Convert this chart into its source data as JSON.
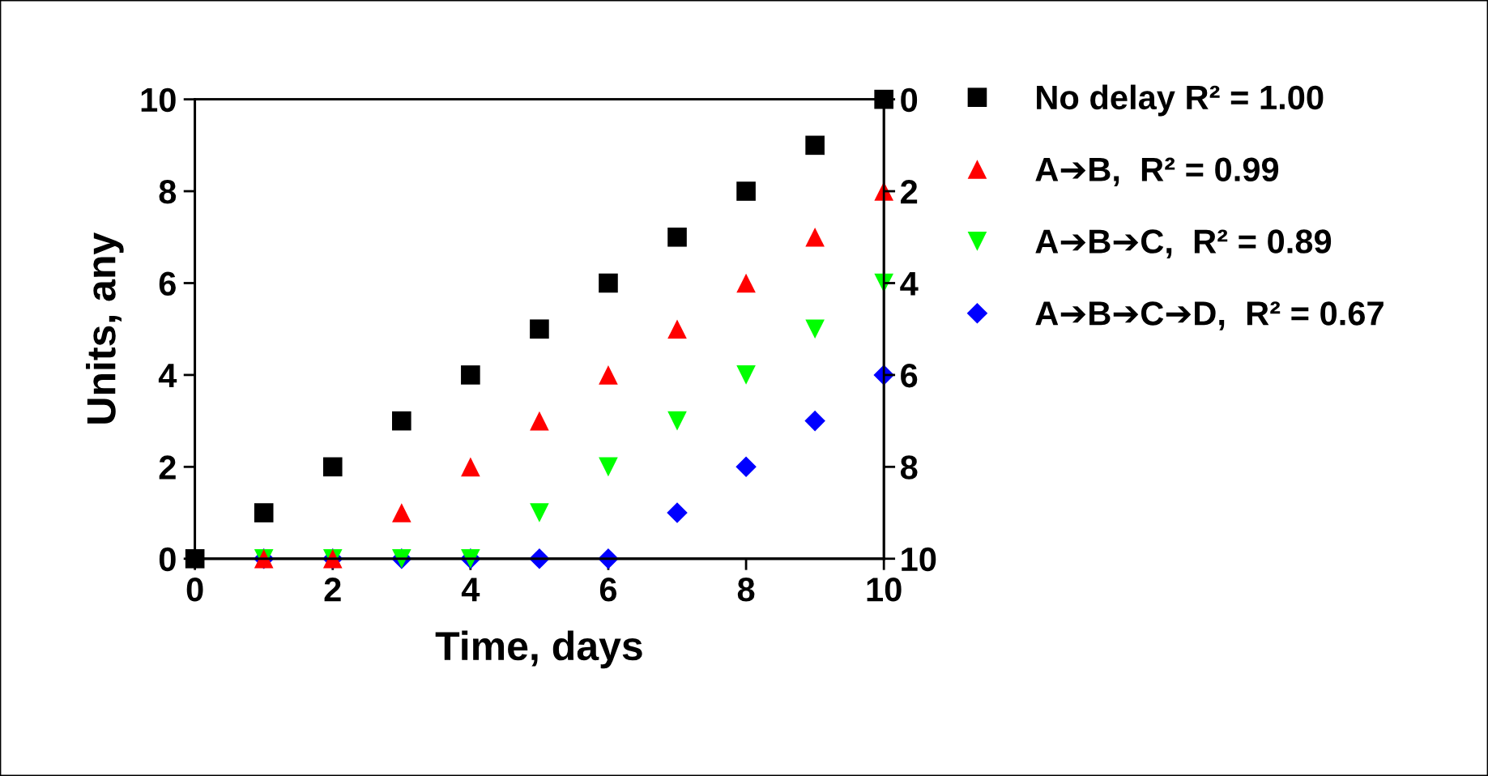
{
  "chart_data": {
    "type": "scatter",
    "xlabel": "Time, days",
    "ylabel": "Units, any",
    "x": [
      0,
      1,
      2,
      3,
      4,
      5,
      6,
      7,
      8,
      9,
      10
    ],
    "series": [
      {
        "name": "No delay R² = 1.00",
        "color": "#000000",
        "marker": "square",
        "values": [
          0,
          1,
          2,
          3,
          4,
          5,
          6,
          7,
          8,
          9,
          10
        ]
      },
      {
        "name": "A➔B,  R² = 0.99",
        "color": "#ff0000",
        "marker": "triangle",
        "values": [
          null,
          0,
          0,
          1,
          2,
          3,
          4,
          5,
          6,
          7,
          8
        ]
      },
      {
        "name": "A➔B➔C,  R² = 0.89",
        "color": "#00ff00",
        "marker": "triangle_down",
        "values": [
          null,
          0,
          0,
          0,
          0,
          1,
          2,
          3,
          4,
          5,
          6
        ]
      },
      {
        "name": "A➔B➔C➔D,  R² = 0.67",
        "color": "#0000ff",
        "marker": "diamond",
        "values": [
          null,
          0,
          0,
          0,
          0,
          0,
          0,
          1,
          2,
          3,
          4
        ]
      }
    ],
    "xlim": [
      0,
      10
    ],
    "xticks": [
      0,
      2,
      4,
      6,
      8,
      10
    ],
    "ylim": [
      0,
      10
    ],
    "yticks": [
      0,
      2,
      4,
      6,
      8,
      10
    ],
    "y2lim": [
      10,
      0
    ],
    "y2ticks": [
      0,
      2,
      4,
      6,
      8,
      10
    ],
    "grid": false,
    "legend": "right"
  }
}
